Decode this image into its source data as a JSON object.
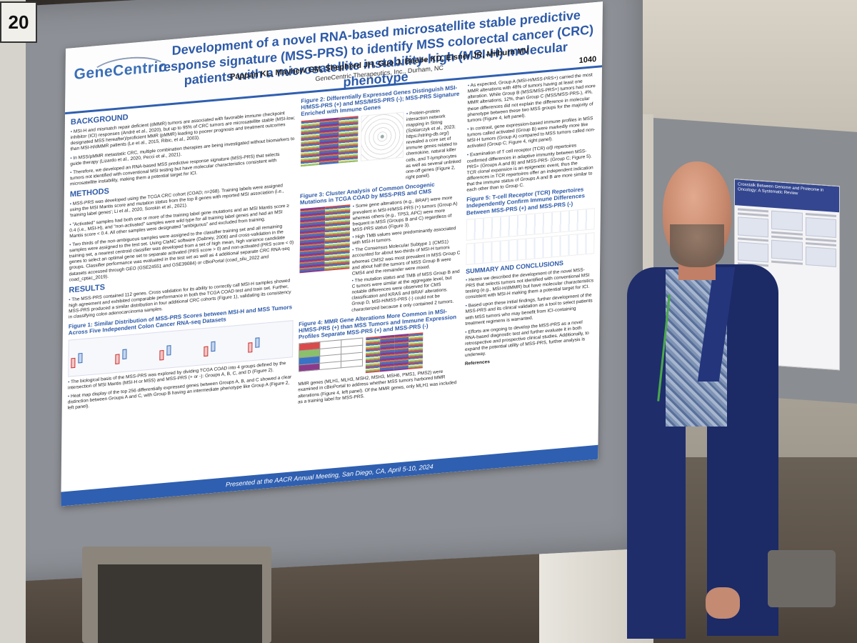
{
  "board_number": "20",
  "poster": {
    "logo": "GeneCentric",
    "title": "Development of a novel RNA-based microsatellite stable predictive response signature (MSS-PRS) to identify MSS colorectal cancer (CRC) patients with a microsatellite instability-high (MSI-H) molecular phenotype",
    "authors": "Pappan KL, Mayhew GM, Shepherd JH, Guo J, Beebe KD, Eisner JR, Milburn MV",
    "affiliation": "GeneCentric Therapeutics, Inc., Durham, NC",
    "number": "1040",
    "sections": {
      "background": "BACKGROUND",
      "background_text": [
        "MSI-H and mismatch repair deficient (dMMR) tumors are associated with favorable immune checkpoint inhibitor (ICI) responses (André et al., 2020), but up to 95% of CRC tumors are microsatellite stable (MSI-low; designated MSS hereafter)/proficient MMR (pMMR) leading to poorer prognosis and treatment outcomes than MSI-H/dMMR patients (Le et al., 2015, Ribic, et al., 2003).",
        "In MSS/pMMR metastatic CRC, multiple combination therapies are being investigated without biomarkers to guide therapy (Lizardo et al., 2020, Pecci et al., 2021).",
        "Therefore, we developed an RNA-based MSS predictive response signature (MSS-PRS) that selects tumors not identified with conventional MSI testing but have molecular characteristics consistent with microsatellite instability, making them a potential target for ICI."
      ],
      "methods": "METHODS",
      "methods_text": [
        "MSS-PRS was developed using the TCGA CRC cohort (COAD; n=268). Training labels were assigned using the MSI Mantis score and mutation status from the top 8 genes with reported MSI association (i.e., 'training label genes'; Li et al., 2020, Sorokin et al., 2021).",
        "\"Activated\" samples had both one or more of the training label gene mutations and an MSI Mantis score ≥ 0.4 (i.e., MSI-H), and \"non-activated\" samples were wild type for all training label genes and had an MSI Mantis score < 0.4. All other samples were designated \"ambiguous\" and excluded from training.",
        "Two thirds of the non-ambiguous samples were assigned to the classifier training set and all remaining samples were assigned to the test set. Using ClaNC software (Dabney, 2006) and cross-validation in the training set, a nearest centroid classifier was developed from a set of high mean, high variance candidate genes to select an optimal gene set to separate activated (PRS score > 0) and non-activated (PRS score < 0) groups. Classifier performance was evaluated in the test set as well as 4 additional separate CRC RNA-seq datasets accessed through GEO (GSE24551 and GSE39084) or cBioPortal (coad_silu_2022 and coad_cptac_2019)."
      ],
      "results": "RESULTS",
      "results_text": "The MSS-PRS contained 112 genes. Cross validation for its ability to correctly call MSI-H samples showed high agreement and exhibited comparable performance in both the TCGA COAD test and train set. Further, MSS-PRS produced a similar distribution in four additional CRC cohorts (Figure 1), validating its consistency in classifying colon adenocarcinoma samples.",
      "fig1_title": "Figure 1: Similar Distribution of MSS-PRS Scores between MSI-H and MSS Tumors Across Five Independent Colon Cancer RNA-seq Datasets",
      "results_text2": [
        "The biological basis of the MSS-PRS was explored by dividing TCGA COAD into 4 groups defined by the intersection of MSI Mantis (MSI-H or MSS) and MSS-PRS (+ or -): Groups A, B, C, and D (Figure 2).",
        "Heat map display of the top 256 differentially expressed genes between Groups A, B, and C showed a clear distinction between Groups A and C, with Group B having an intermediate phenotype like Group A (Figure 2, left panel)."
      ],
      "fig2_title": "Figure 2: Differentially Expressed Genes Distinguish MSI-H/MSS-PRS (+) and MSS/MSS-PRS (-); MSS-PRS Signature Enriched with Immune Genes",
      "fig2_text": "Protein-protein interaction network mapping in String (Szklarczyk et al., 2023; https://string-db.org/) revealed a core set of immune genes related to chemokine, natural killer cells, and T-lymphocytes as well as several unlinked one-off genes (Figure 2, right panel).",
      "fig3_title": "Figure 3: Cluster Analysis of Common Oncogenic Mutations in TCGA COAD by MSS-PRS and CMS",
      "fig3_text": [
        "Some gene alterations (e.g., BRAF) were more prevalent in MSI-H/MSS-PRS (+) tumors (Group A) whereas others (e.g., TP53, APC) were more frequent in MSS (Groups B and C) regardless of MSS-PRS status (Figure 3).",
        "High TMB values were predominantly associated with MSI-H tumors.",
        "The Consensus Molecular Subtype 1 (CMS1) accounted for about two-thirds of MSI-H tumors whereas CMS2 was most prevalent in MSS Group C and about half the tumors of MSS Group B were CMS4 and the remainder were mixed.",
        "The mutation status and TMB of MSS Group B and C tumors were similar at the aggregate level, but notable differences were observed for CMS classification and KRAS and BRAF alterations. Group D, MSI-H/MSS-PRS (-) could not be characterized because it only contained 2 tumors."
      ],
      "fig4_title": "Figure 4: MMR Gene Alterations More Common in MSI-H/MSS-PRS (+) than MSS Tumors and Immune Expression Profiles Separate MSS-PRS (+) and MSS-PRS (-)",
      "fig4_text": "MMR genes (MLH1, MLH3, MSH2, MSH3, MSH6, PMS1, PMS2) were examined in cBioPortal to address whether MSS tumors harbored MMR alterations (Figure 4, left panel). Of the MMR genes, only MLH1 was included as a training label for MSS-PRS.",
      "col3_text": [
        "As expected, Group A (MSI-H/MSS-PRS+) carried the most MMR alterations with 48% of tumors having at least one alteration. While Group B (MSS/MSS-PRS+) tumors had more MMR alterations, 12%, than Group C (MSS/MSS-PRS-), 4%, these differences did not explain the difference in molecular phenotype between these two MSS groups for the majority of tumors (Figure 4, left panel).",
        "In contrast, gene expression-based immune profiles in MSS tumors called activated (Group B) were markedly more like MSI-H tumors (Group A) compared to MSS tumors called non-activated (Group C; Figure 4, right panel).",
        "Examination of T cell receptor (TCR) α/β repertoires confirmed differences in adaptive immunity between MSS-PRS+ (Groups A and B) and MSS-PRS- (Group C; Figure 5). TCR clonal expansion is an epigenetic event, thus the differences in TCR repertoires offer an independent indication that the immune status of Groups A and B are more similar to each other than to Group C."
      ],
      "fig5_title": "Figure 5: T-cell Receptor (TCR) Repertoires Independently Confirm Immune Differences Between MSS-PRS (+) and MSS-PRS (-)",
      "summary": "SUMMARY AND CONCLUSIONS",
      "summary_text": [
        "Herein we described the development of the novel MSS-PRS that selects tumors not identified with conventional MSI testing (e.g., MSI-H/dMMR) but have molecular characteristics consistent with MSI-H making them a potential target for ICI.",
        "Based upon these initial findings, further development of the MSS-PRS and its clinical validation as a tool to select patients with MSS tumors who may benefit from ICI-containing treatment regimens is warranted.",
        "Efforts are ongoing to develop the MSS-PRS as a novel RNA-based diagnostic test and further evaluate it in both retrospective and prospective clinical studies. Additionally, to expand the potential utility of MSS-PRS, further analysis is underway."
      ],
      "references": "References"
    },
    "footer": "Presented at the AACR Annual Meeting, San Diego, CA, April 5-10, 2024"
  },
  "side_poster": {
    "title": "Crosstalk Between Genome and Proteome in Oncology: A Systematic Review"
  },
  "colors": {
    "poster_blue": "#2d5aa8",
    "board_gray": "#8d9096",
    "jacket_navy": "#1f2d6b"
  }
}
